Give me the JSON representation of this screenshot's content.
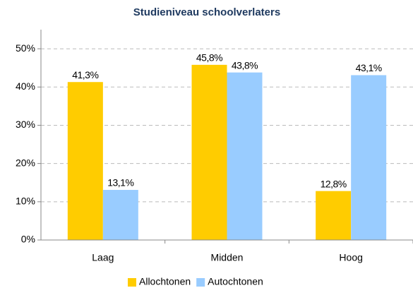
{
  "chart_data": {
    "type": "bar",
    "title": "Studieniveau schoolverlaters",
    "categories": [
      "Laag",
      "Midden",
      "Hoog"
    ],
    "series": [
      {
        "name": "Allochtonen",
        "color": "#ffcc00",
        "values": [
          41.3,
          45.8,
          12.8
        ],
        "value_labels": [
          "41,3%",
          "45,8%",
          "12,8%"
        ]
      },
      {
        "name": "Autochtonen",
        "color": "#99ccff",
        "values": [
          13.1,
          43.8,
          43.1
        ],
        "value_labels": [
          "13,1%",
          "43,8%",
          "43,1%"
        ]
      }
    ],
    "ylim": [
      0,
      55
    ],
    "yticks": [
      {
        "value": 0,
        "label": "0%"
      },
      {
        "value": 10,
        "label": "10%"
      },
      {
        "value": 20,
        "label": "20%"
      },
      {
        "value": 30,
        "label": "30%"
      },
      {
        "value": 40,
        "label": "40%"
      },
      {
        "value": 50,
        "label": "50%"
      }
    ],
    "grid": true,
    "legend": "bottom"
  }
}
